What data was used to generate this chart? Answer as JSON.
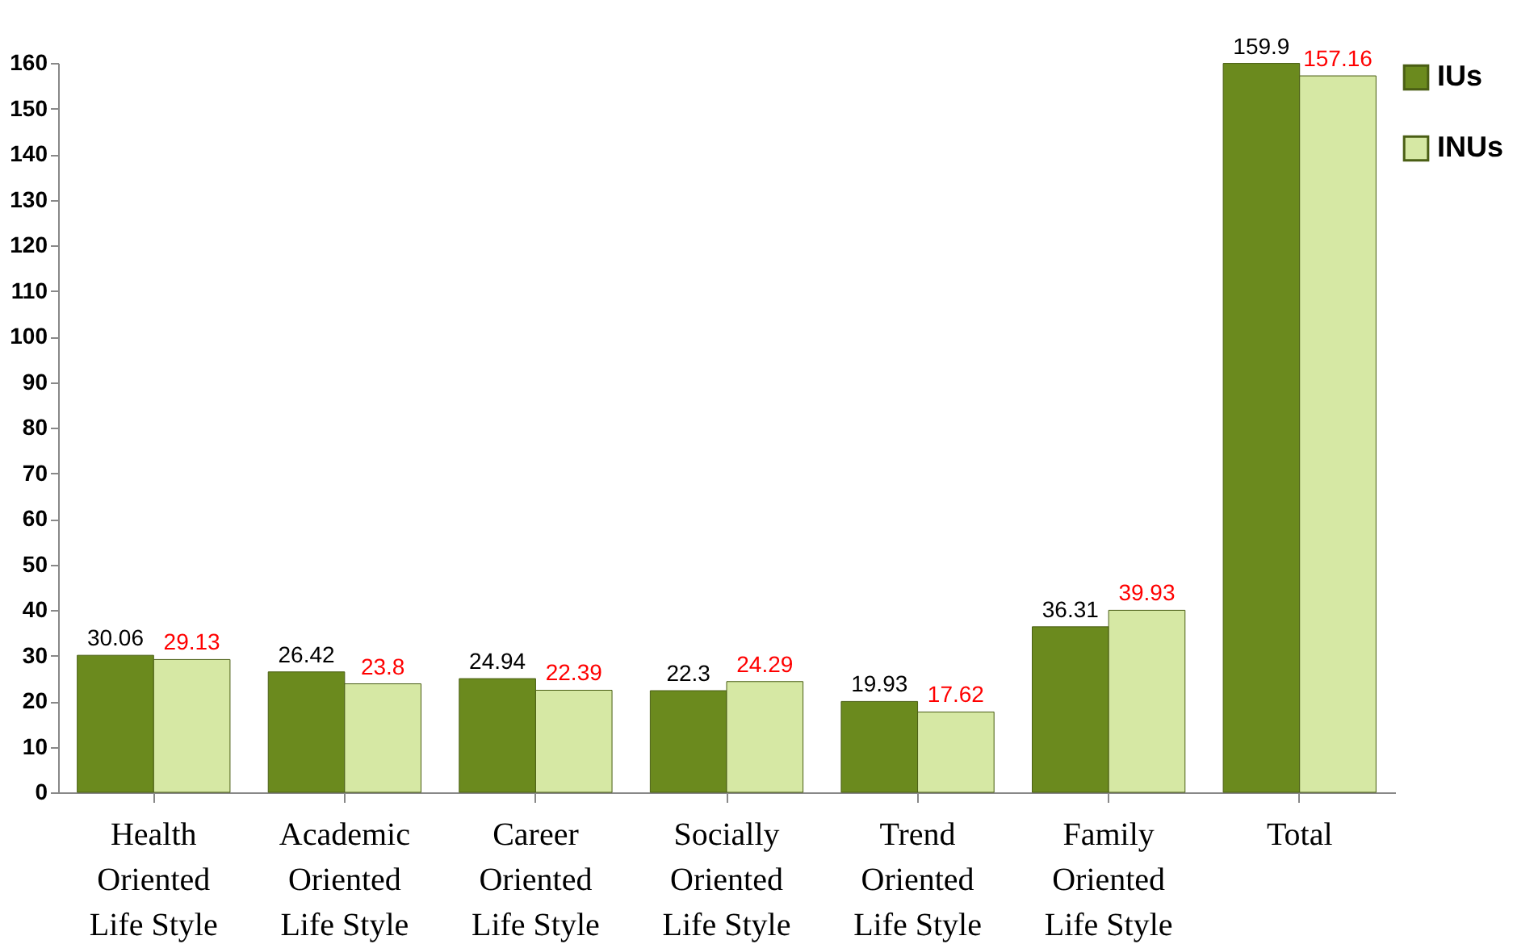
{
  "chart_data": {
    "type": "bar",
    "categories": [
      "Health Oriented Life Style",
      "Academic Oriented Life Style",
      "Career Oriented Life Style",
      "Socially Oriented Life Style",
      "Trend Oriented Life Style",
      "Family Oriented Life Style",
      "Total"
    ],
    "series": [
      {
        "name": "IUs",
        "color": "#6b8a1e",
        "values": [
          30.06,
          26.42,
          24.94,
          22.3,
          19.93,
          36.31,
          159.9
        ]
      },
      {
        "name": "INUs",
        "color": "#d6e8a4",
        "values": [
          29.13,
          23.8,
          22.39,
          24.29,
          17.62,
          39.93,
          157.16
        ]
      }
    ],
    "ylim": [
      0,
      160
    ],
    "yticks": [
      0,
      10,
      20,
      30,
      40,
      50,
      60,
      70,
      80,
      90,
      100,
      110,
      120,
      130,
      140,
      150,
      160
    ],
    "grid": false,
    "legend": "right",
    "data_labels": true
  }
}
